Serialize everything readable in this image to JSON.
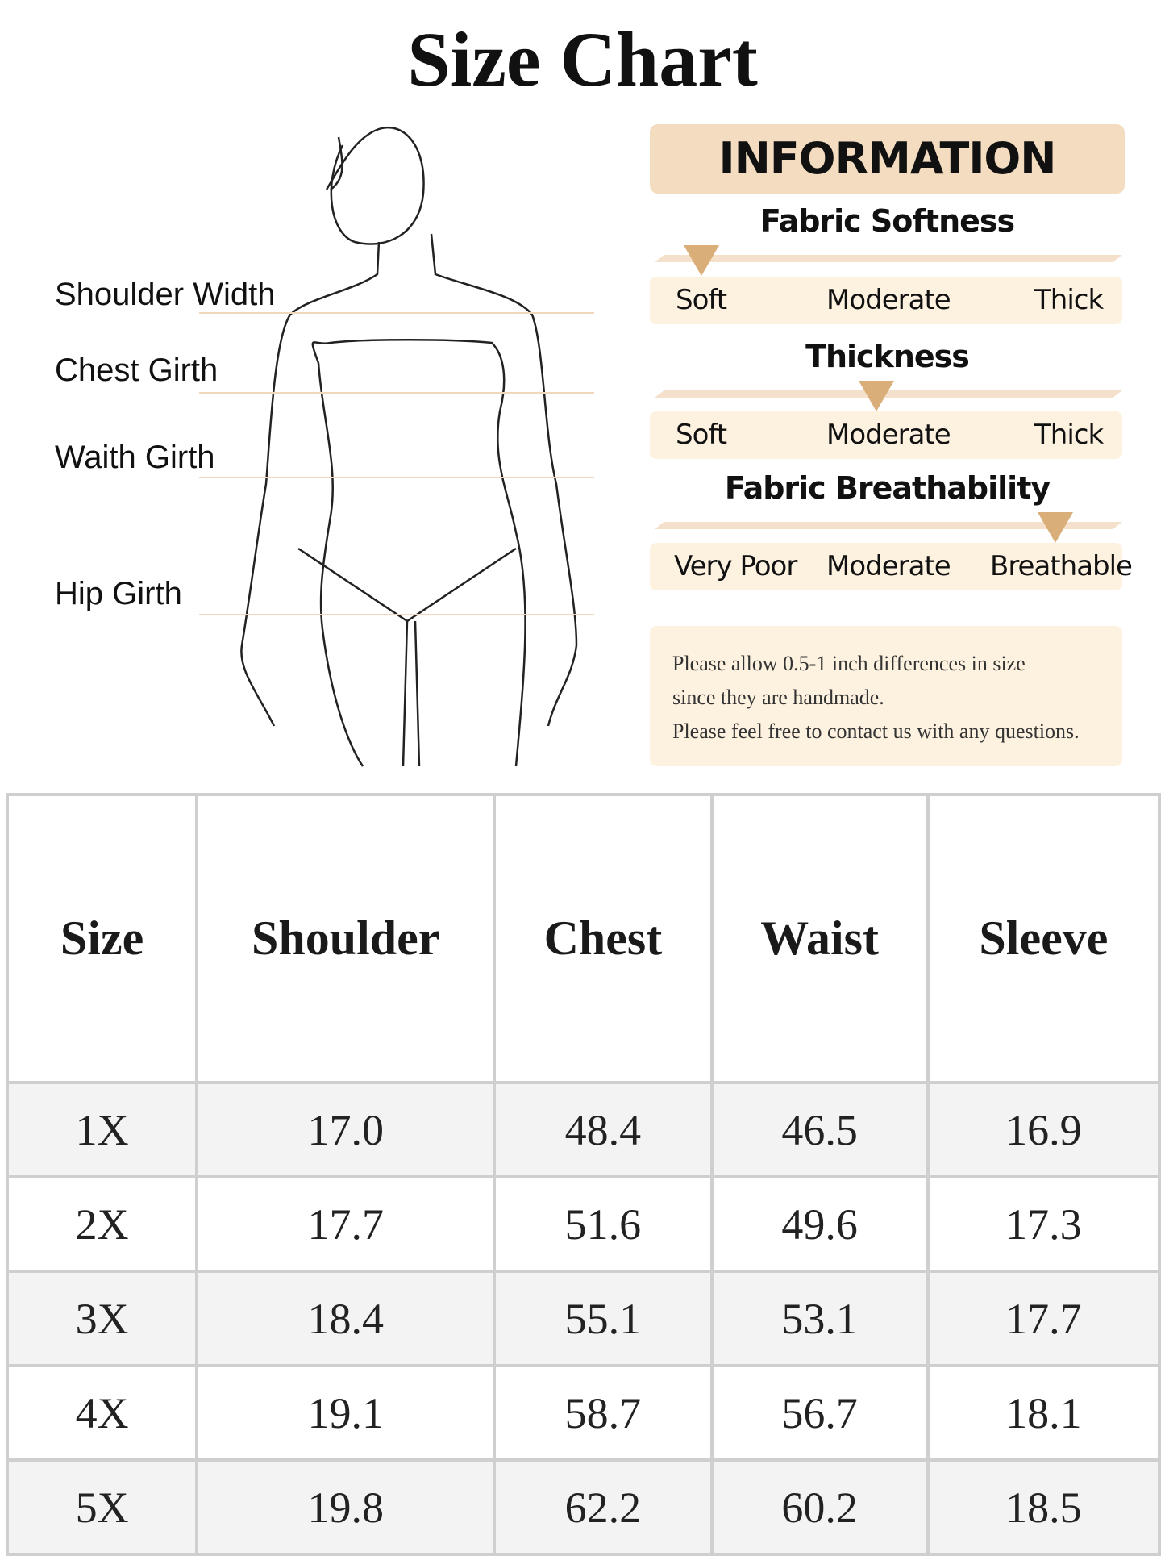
{
  "title": "Size Chart",
  "measurements": [
    "Shoulder Width",
    "Chest Girth",
    "Waith Girth",
    "Hip Girth"
  ],
  "info": {
    "header": "INFORMATION",
    "accent_color": "#d9ae78",
    "scales": [
      {
        "title": "Fabric Softness",
        "labels": [
          "Soft",
          "Moderate",
          "Thick"
        ],
        "level": 0
      },
      {
        "title": "Thickness",
        "labels": [
          "Soft",
          "Moderate",
          "Thick"
        ],
        "level": 0.5
      },
      {
        "title": "Fabric Breathability",
        "labels": [
          "Very Poor",
          "Moderate",
          "Breathable"
        ],
        "level": 1
      }
    ],
    "notes": [
      "Please allow 0.5-1 inch differences in size",
      "since they are handmade.",
      "Please feel free to contact us with any questions."
    ]
  },
  "table": {
    "headers": [
      "Size",
      "Shoulder",
      "Chest",
      "Waist",
      "Sleeve"
    ],
    "rows": [
      [
        "1X",
        "17.0",
        "48.4",
        "46.5",
        "16.9"
      ],
      [
        "2X",
        "17.7",
        "51.6",
        "49.6",
        "17.3"
      ],
      [
        "3X",
        "18.4",
        "55.1",
        "53.1",
        "17.7"
      ],
      [
        "4X",
        "19.1",
        "58.7",
        "56.7",
        "18.1"
      ],
      [
        "5X",
        "19.8",
        "62.2",
        "60.2",
        "18.5"
      ]
    ]
  }
}
